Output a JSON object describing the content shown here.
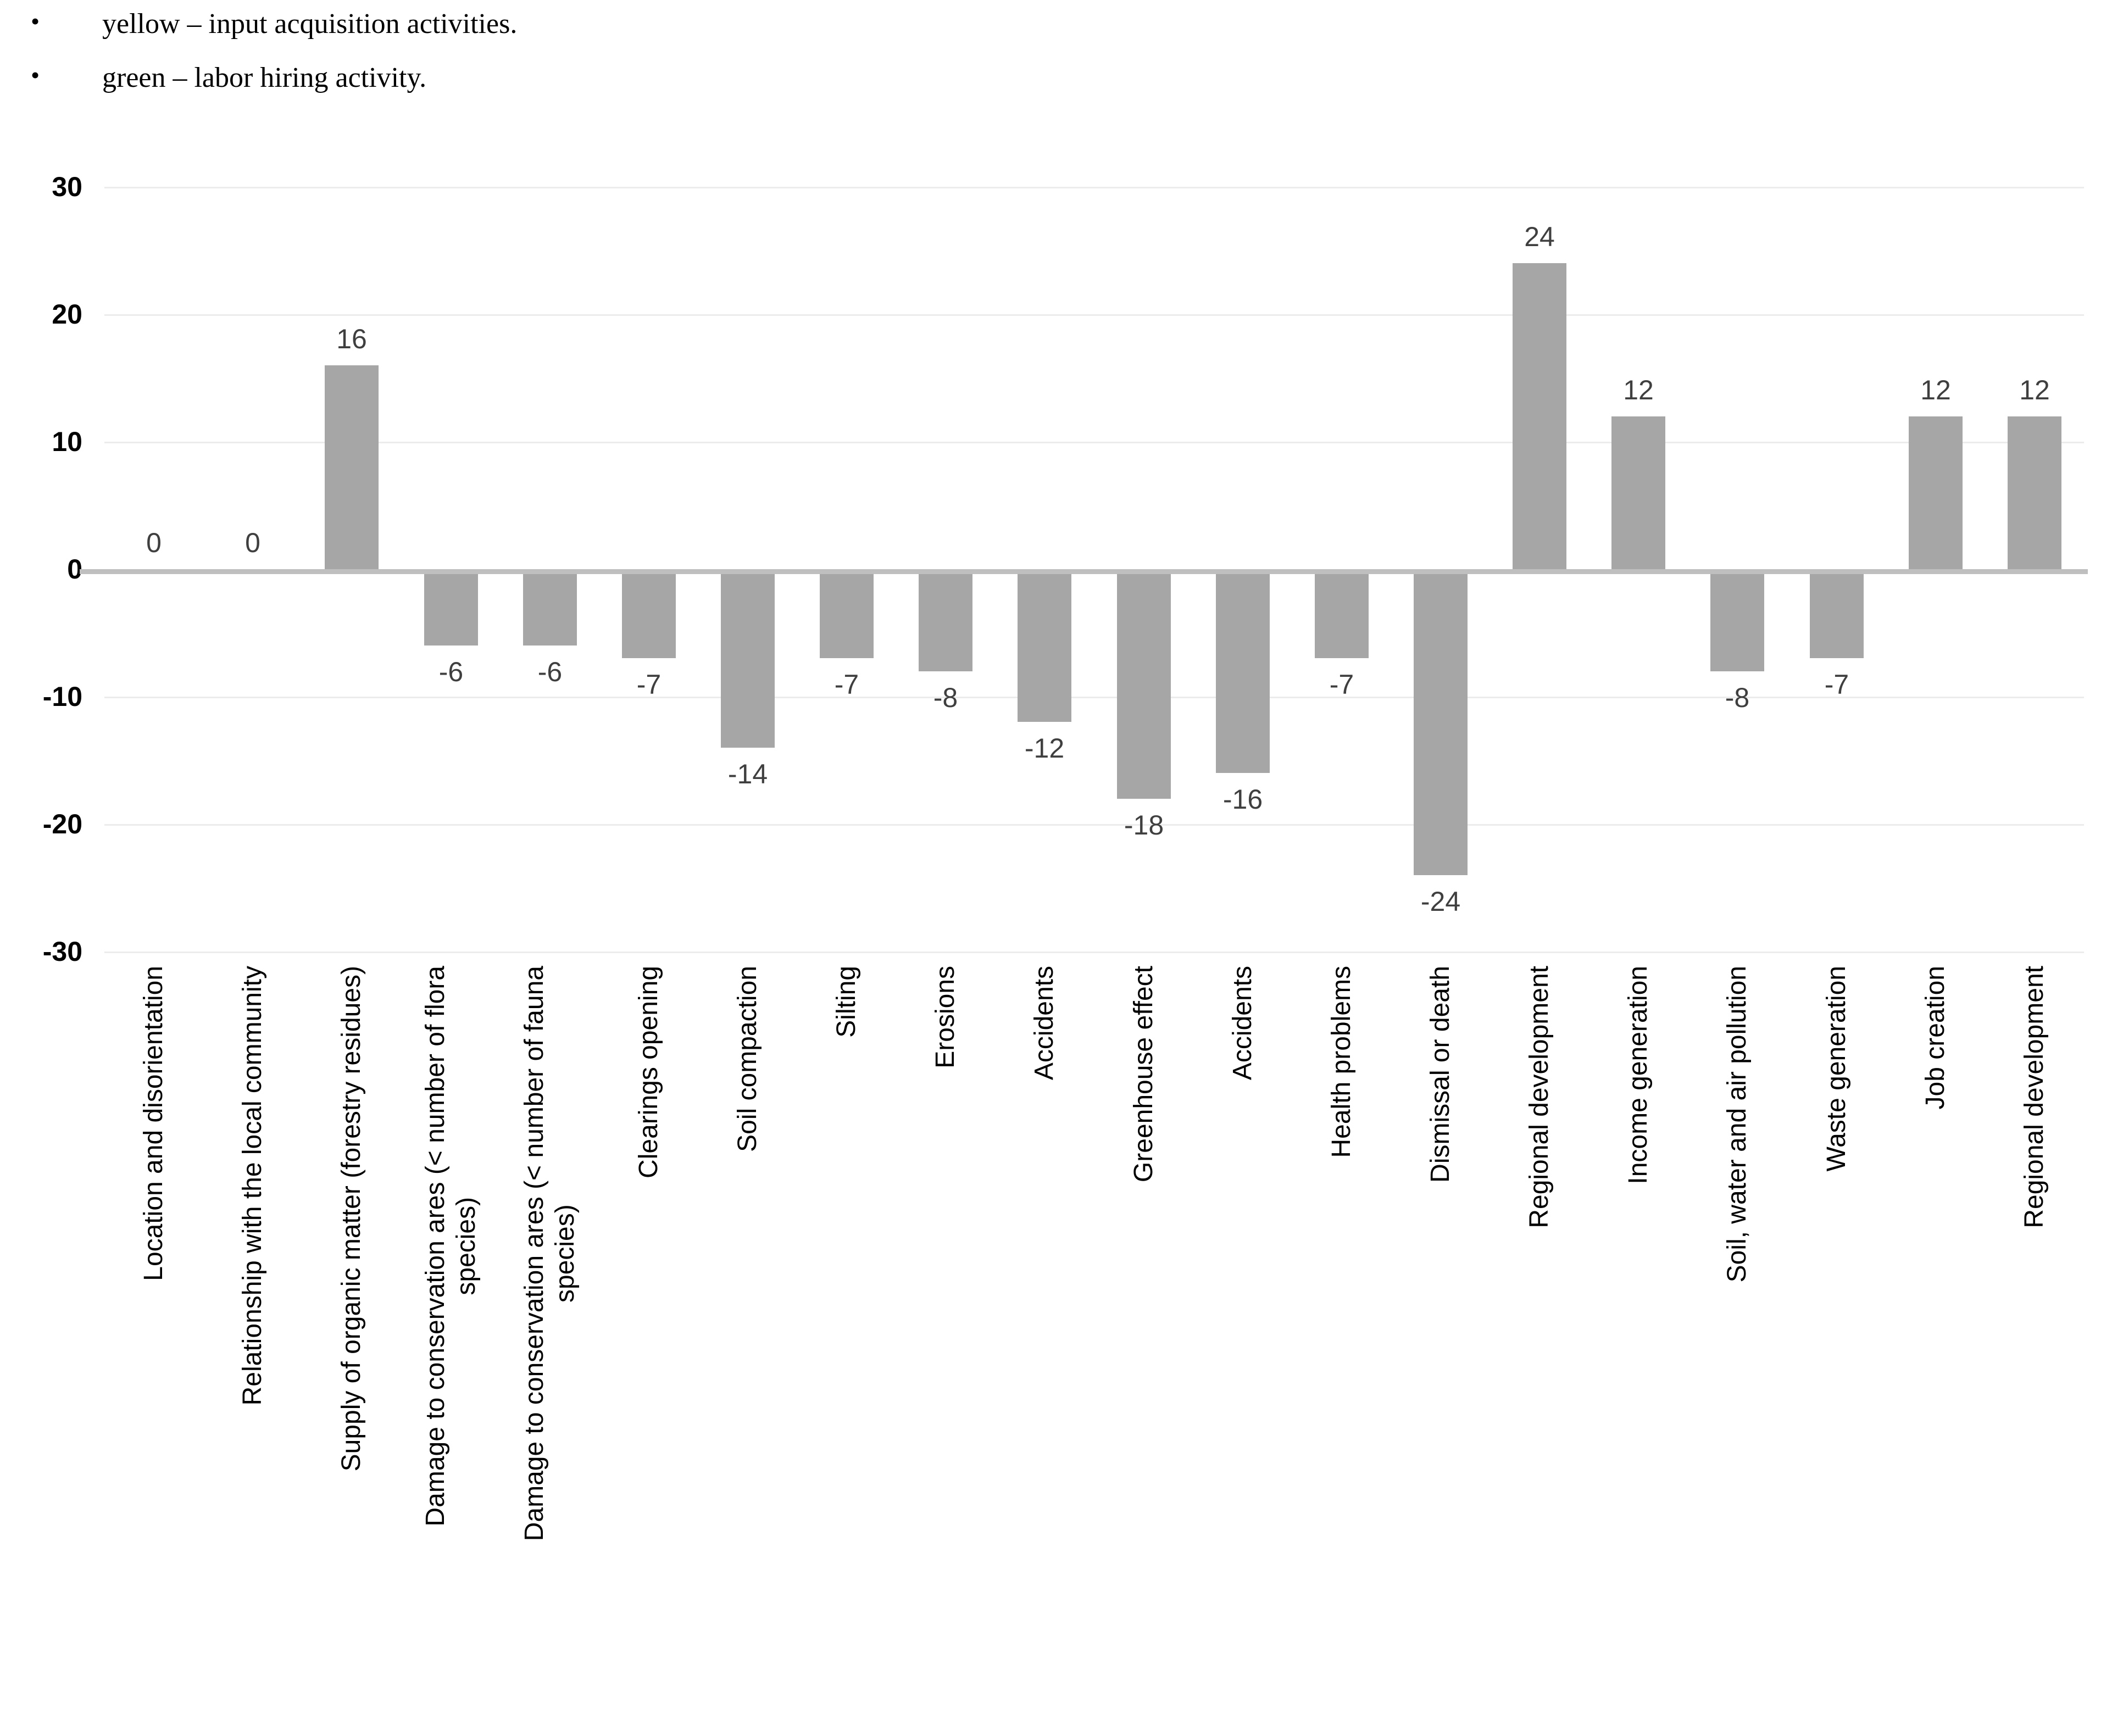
{
  "notes": [
    {
      "bullet": "•",
      "text": "yellow – input acquisition activities."
    },
    {
      "bullet": "•",
      "text": "green – labor hiring activity."
    }
  ],
  "chart_data": {
    "type": "bar",
    "categories": [
      "Location and disorientation",
      "Relationship with the local community",
      "Supply of organic matter (forestry residues)",
      "Damage to conservation ares (< number of flora\nspecies)",
      "Damage to conservation ares (< number of fauna\nspecies)",
      "Clearings opening",
      "Soil compaction",
      "Silting",
      "Erosions",
      "Accidents",
      "Greenhouse effect",
      "Accidents",
      "Health problems",
      "Dismissal or death",
      "Regional development",
      "Income generation",
      "Soil, water and air pollution",
      "Waste generation",
      "Job creation",
      "Regional development"
    ],
    "values": [
      0,
      0,
      16,
      -6,
      -6,
      -7,
      -14,
      -7,
      -8,
      -12,
      -18,
      -16,
      -7,
      -24,
      24,
      12,
      -8,
      -7,
      12,
      12
    ],
    "data_labels": [
      "0",
      "0",
      "16",
      "-6",
      "-6",
      "-7",
      "-14",
      "-7",
      "-8",
      "-12",
      "-18",
      "-16",
      "-7",
      "-24",
      "24",
      "12",
      "-8",
      "-7",
      "12",
      "12"
    ],
    "yticks": [
      30,
      20,
      10,
      0,
      -10,
      -20,
      -30
    ],
    "ylim": [
      -30,
      30
    ],
    "grid": true,
    "legend_position": "none",
    "title": "",
    "xlabel": "",
    "ylabel": "",
    "bar_color": "#a6a6a6",
    "axis_line_color": "#bfbfbf",
    "gridline_color": "#ececec",
    "value_label_color": "#3f3f3f",
    "tick_label_color": "#000000"
  }
}
